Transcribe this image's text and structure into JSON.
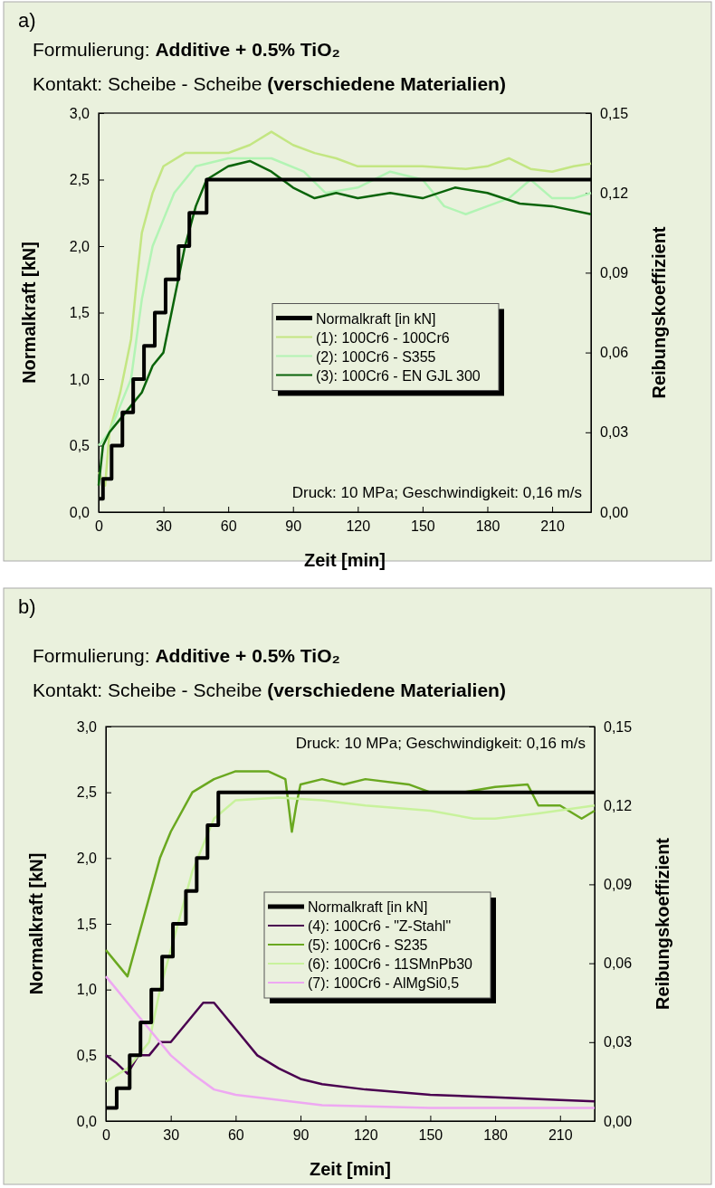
{
  "chart_data": [
    {
      "type": "line",
      "title": "Formulierung: Additive + 0.5% TiO₂",
      "subtitle": "Kontakt: Scheibe - Scheibe (verschiedene Materialien)",
      "xlabel": "Zeit [min]",
      "ylabel": "Normalkraft [kN]",
      "y2label": "Reibungskoeffizient",
      "annotations": [
        "a)",
        "Druck: 10 MPa; Geschwindigkeit: 0,16 m/s"
      ],
      "xlim": [
        0,
        228
      ],
      "xticks": [
        0,
        30,
        60,
        90,
        120,
        150,
        180,
        210
      ],
      "ylim": [
        0,
        3
      ],
      "yticks": [
        {
          "value": 0,
          "label": "0,0"
        },
        {
          "value": 0.5,
          "label": "0,5"
        },
        {
          "value": 1,
          "label": "1,0"
        },
        {
          "value": 1.5,
          "label": "1,5"
        },
        {
          "value": 2,
          "label": "2,0"
        },
        {
          "value": 2.5,
          "label": "2,5"
        },
        {
          "value": 3,
          "label": "3,0"
        }
      ],
      "y2lim": [
        0,
        0.15
      ],
      "y2ticks": [
        {
          "value": 0,
          "label": "0,00"
        },
        {
          "value": 0.03,
          "label": "0,03"
        },
        {
          "value": 0.06,
          "label": "0,06"
        },
        {
          "value": 0.09,
          "label": "0,09"
        },
        {
          "value": 0.12,
          "label": "0,12"
        },
        {
          "value": 0.15,
          "label": "0,15"
        }
      ],
      "legend": "center",
      "grid": false,
      "series": [
        {
          "name": "Normalkraft [in kN]",
          "type": "step",
          "color": "#000000",
          "x": [
            0,
            2,
            6,
            11,
            16,
            21,
            26,
            31,
            37,
            42,
            47,
            50,
            52,
            228
          ],
          "values": [
            0.1,
            0.25,
            0.5,
            0.75,
            1,
            1.25,
            1.5,
            1.75,
            2,
            2.25,
            2.25,
            2.5,
            2.5,
            2.5
          ]
        },
        {
          "name": "(1): 100Cr6 - 100Cr6",
          "color": "#c3e682",
          "axis": "y2",
          "x": [
            0,
            3,
            5,
            10,
            15,
            18,
            20,
            25,
            30,
            40,
            50,
            60,
            70,
            80,
            90,
            100,
            110,
            120,
            130,
            150,
            170,
            180,
            190,
            200,
            210,
            220,
            228
          ],
          "values": [
            0.015,
            0.01,
            0.03,
            0.045,
            0.065,
            0.09,
            0.105,
            0.12,
            0.13,
            0.135,
            0.135,
            0.135,
            0.138,
            0.143,
            0.138,
            0.135,
            0.133,
            0.13,
            0.13,
            0.13,
            0.129,
            0.13,
            0.133,
            0.129,
            0.128,
            0.13,
            0.131
          ]
        },
        {
          "name": "(2): 100Cr6 - S355",
          "color": "#b2f4b4",
          "axis": "y2",
          "x": [
            0,
            5,
            10,
            15,
            20,
            25,
            30,
            35,
            45,
            60,
            80,
            95,
            105,
            120,
            135,
            150,
            160,
            170,
            180,
            190,
            200,
            210,
            220,
            228
          ],
          "values": [
            0.025,
            0.03,
            0.04,
            0.05,
            0.08,
            0.1,
            0.11,
            0.12,
            0.13,
            0.133,
            0.133,
            0.128,
            0.12,
            0.122,
            0.128,
            0.125,
            0.115,
            0.112,
            0.115,
            0.118,
            0.125,
            0.118,
            0.118,
            0.12
          ]
        },
        {
          "name": "(3): 100Cr6 - EN GJL 300",
          "color": "#0a640a",
          "axis": "y2",
          "x": [
            0,
            2,
            5,
            10,
            15,
            20,
            25,
            30,
            35,
            40,
            45,
            50,
            60,
            70,
            80,
            90,
            100,
            110,
            120,
            135,
            150,
            165,
            180,
            195,
            210,
            228
          ],
          "values": [
            0.01,
            0.025,
            0.03,
            0.035,
            0.04,
            0.045,
            0.055,
            0.06,
            0.08,
            0.1,
            0.115,
            0.125,
            0.13,
            0.132,
            0.128,
            0.122,
            0.118,
            0.12,
            0.118,
            0.12,
            0.118,
            0.122,
            0.12,
            0.116,
            0.115,
            0.112
          ]
        }
      ]
    },
    {
      "type": "line",
      "title": "Formulierung: Additive + 0.5% TiO₂",
      "subtitle": "Kontakt: Scheibe - Scheibe (verschiedene Materialien)",
      "xlabel": "Zeit [min]",
      "ylabel": "Normalkraft [kN]",
      "y2label": "Reibungskoeffizient",
      "annotations": [
        "b)",
        "Druck: 10 MPa; Geschwindigkeit: 0,16 m/s"
      ],
      "xlim": [
        0,
        226
      ],
      "xticks": [
        0,
        30,
        60,
        90,
        120,
        150,
        180,
        210
      ],
      "ylim": [
        0,
        3
      ],
      "yticks": [
        {
          "value": 0,
          "label": "0,0"
        },
        {
          "value": 0.5,
          "label": "0,5"
        },
        {
          "value": 1,
          "label": "1,0"
        },
        {
          "value": 1.5,
          "label": "1,5"
        },
        {
          "value": 2,
          "label": "2,0"
        },
        {
          "value": 2.5,
          "label": "2,5"
        },
        {
          "value": 3,
          "label": "3,0"
        }
      ],
      "y2lim": [
        0,
        0.15
      ],
      "y2ticks": [
        {
          "value": 0,
          "label": "0,00"
        },
        {
          "value": 0.03,
          "label": "0,03"
        },
        {
          "value": 0.06,
          "label": "0,06"
        },
        {
          "value": 0.09,
          "label": "0,09"
        },
        {
          "value": 0.12,
          "label": "0,12"
        },
        {
          "value": 0.15,
          "label": "0,15"
        }
      ],
      "legend": "right",
      "grid": false,
      "series": [
        {
          "name": "Normalkraft [in kN]",
          "type": "step",
          "color": "#000000",
          "x": [
            0,
            5,
            11,
            16,
            21,
            26,
            31,
            37,
            42,
            47,
            50,
            52,
            226
          ],
          "values": [
            0.1,
            0.25,
            0.5,
            0.75,
            1,
            1.25,
            1.5,
            1.75,
            2,
            2.25,
            2.25,
            2.5,
            2.5
          ]
        },
        {
          "name": "(4): 100Cr6 - \"Z-Stahl\"",
          "color": "#4a0050",
          "axis": "y2",
          "x": [
            0,
            5,
            10,
            15,
            20,
            25,
            30,
            35,
            40,
            45,
            50,
            55,
            60,
            70,
            80,
            90,
            100,
            120,
            150,
            180,
            210,
            226
          ],
          "values": [
            0.025,
            0.022,
            0.018,
            0.025,
            0.025,
            0.03,
            0.03,
            0.035,
            0.04,
            0.045,
            0.045,
            0.04,
            0.035,
            0.025,
            0.02,
            0.016,
            0.014,
            0.012,
            0.01,
            0.009,
            0.008,
            0.0075
          ]
        },
        {
          "name": "(5): 100Cr6 - S235",
          "color": "#6aa820",
          "axis": "y2",
          "x": [
            0,
            5,
            10,
            15,
            20,
            25,
            30,
            40,
            50,
            60,
            75,
            83,
            86,
            88,
            90,
            100,
            110,
            120,
            140,
            150,
            165,
            180,
            195,
            200,
            210,
            220,
            226
          ],
          "values": [
            0.065,
            0.06,
            0.055,
            0.07,
            0.085,
            0.1,
            0.11,
            0.125,
            0.13,
            0.133,
            0.133,
            0.13,
            0.11,
            0.12,
            0.128,
            0.13,
            0.128,
            0.13,
            0.128,
            0.125,
            0.125,
            0.127,
            0.128,
            0.12,
            0.12,
            0.115,
            0.118
          ]
        },
        {
          "name": "(6): 100Cr6 - 11SMnPb30",
          "color": "#c8f29c",
          "axis": "y2",
          "x": [
            0,
            10,
            20,
            25,
            30,
            35,
            40,
            45,
            50,
            60,
            80,
            100,
            120,
            150,
            170,
            180,
            200,
            226
          ],
          "values": [
            0.015,
            0.02,
            0.03,
            0.05,
            0.065,
            0.08,
            0.095,
            0.105,
            0.115,
            0.122,
            0.123,
            0.122,
            0.12,
            0.118,
            0.115,
            0.115,
            0.117,
            0.12
          ]
        },
        {
          "name": "(7): 100Cr6 - AlMgSi0,5",
          "color": "#eea8f2",
          "axis": "y2",
          "x": [
            0,
            5,
            10,
            15,
            20,
            30,
            40,
            50,
            60,
            80,
            100,
            150,
            226
          ],
          "values": [
            0.055,
            0.05,
            0.045,
            0.04,
            0.035,
            0.025,
            0.018,
            0.012,
            0.01,
            0.008,
            0.006,
            0.005,
            0.005
          ]
        }
      ]
    }
  ]
}
